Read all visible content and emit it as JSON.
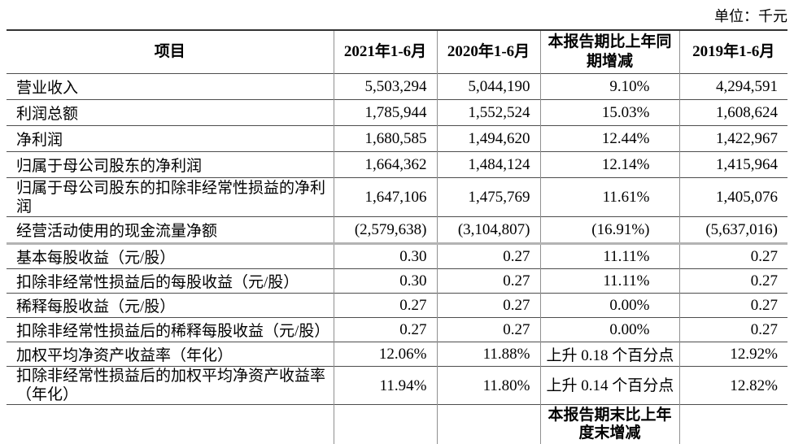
{
  "unit_label": "单位：千元",
  "table": {
    "headers": {
      "item": "项目",
      "col_2021": "2021年1-6月",
      "col_2020": "2020年1-6月",
      "change_line1": "本报告期比上年同",
      "change_line2": "期增减",
      "col_2019": "2019年1-6月"
    },
    "rows": [
      {
        "item": "营业收入",
        "v2021": "5,503,294",
        "v2020": "5,044,190",
        "change": "9.10%",
        "v2019": "4,294,591"
      },
      {
        "item": "利润总额",
        "v2021": "1,785,944",
        "v2020": "1,552,524",
        "change": "15.03%",
        "v2019": "1,608,624"
      },
      {
        "item": "净利润",
        "v2021": "1,680,585",
        "v2020": "1,494,620",
        "change": "12.44%",
        "v2019": "1,422,967"
      },
      {
        "item": "归属于母公司股东的净利润",
        "v2021": "1,664,362",
        "v2020": "1,484,124",
        "change": "12.14%",
        "v2019": "1,415,964"
      },
      {
        "item": "归属于母公司股东的扣除非经常性损益的净利润",
        "v2021": "1,647,106",
        "v2020": "1,475,769",
        "change": "11.61%",
        "v2019": "1,405,076"
      },
      {
        "item": "经营活动使用的现金流量净额",
        "v2021": "(2,579,638)",
        "v2020": "(3,104,807)",
        "change": "(16.91%)",
        "v2019": "(5,637,016)"
      },
      {
        "item": "基本每股收益（元/股）",
        "v2021": "0.30",
        "v2020": "0.27",
        "change": "11.11%",
        "v2019": "0.27"
      },
      {
        "item": "扣除非经常性损益后的每股收益（元/股）",
        "v2021": "0.30",
        "v2020": "0.27",
        "change": "11.11%",
        "v2019": "0.27"
      },
      {
        "item": "稀释每股收益（元/股）",
        "v2021": "0.27",
        "v2020": "0.27",
        "change": "0.00%",
        "v2019": "0.27"
      },
      {
        "item": "扣除非经常性损益后的稀释每股收益（元/股）",
        "v2021": "0.27",
        "v2020": "0.27",
        "change": "0.00%",
        "v2019": "0.27"
      },
      {
        "item": "加权平均净资产收益率（年化）",
        "v2021": "12.06%",
        "v2020": "11.88%",
        "change": "上升 0.18 个百分点",
        "v2019": "12.92%"
      },
      {
        "item": "扣除非经常性损益后的加权平均净资产收益率（年化）",
        "v2021": "11.94%",
        "v2020": "11.80%",
        "change": "上升 0.14 个百分点",
        "v2019": "12.82%"
      }
    ],
    "partial_row": {
      "item": "",
      "v2021": "",
      "v2020": "",
      "change": "本报告期末比上年度末增减",
      "v2019": ""
    }
  }
}
